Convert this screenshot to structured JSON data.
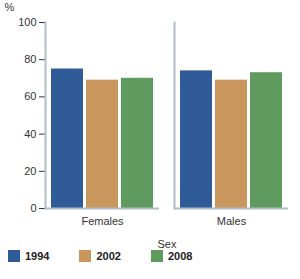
{
  "chart_data": {
    "type": "bar",
    "categories": [
      "Females",
      "Males"
    ],
    "series": [
      {
        "name": "1994",
        "color": "#2f5c99",
        "values": [
          75,
          74
        ]
      },
      {
        "name": "2002",
        "color": "#c9975e",
        "values": [
          69,
          69
        ]
      },
      {
        "name": "2008",
        "color": "#5f9a5f",
        "values": [
          70,
          73
        ]
      }
    ],
    "x_label": "Sex",
    "y_label": "%",
    "ylim": [
      0,
      100
    ],
    "yticks": [
      0,
      20,
      40,
      60,
      80,
      100
    ],
    "grid": false,
    "legend": "bottom"
  }
}
